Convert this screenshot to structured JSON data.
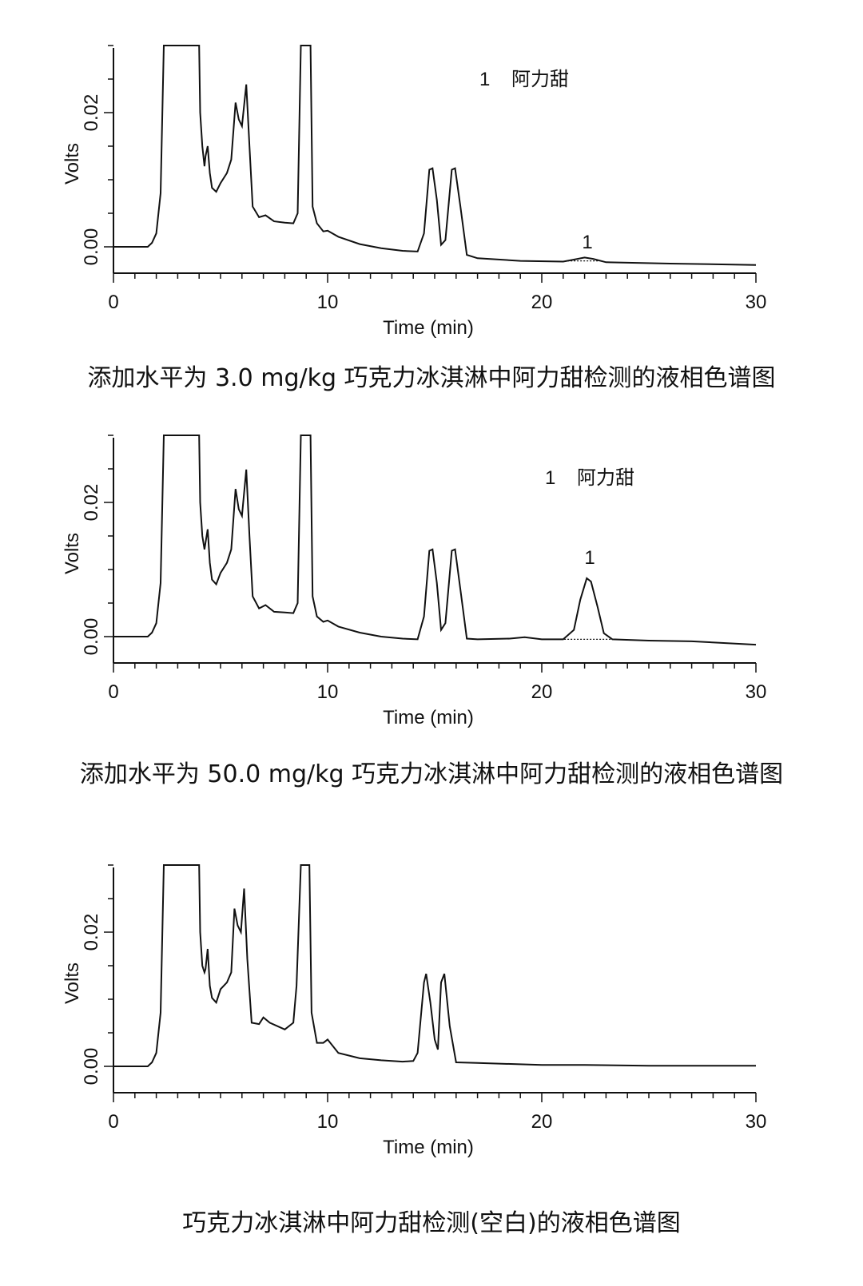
{
  "chart_data": [
    {
      "type": "line",
      "title": "添加水平为 3.0 mg/kg 巧克力冰淇淋中阿力甜检测的液相色谱图",
      "xlabel": "Time (min)",
      "ylabel": "Volts",
      "xlim": [
        0,
        30
      ],
      "ylim": [
        -0.004,
        0.03
      ],
      "xticks": [
        "0",
        "10",
        "20",
        "30"
      ],
      "yticks": [
        "0.00",
        "0.02"
      ],
      "legend": {
        "number": "1",
        "name": "阿力甜"
      },
      "peak_label": "1",
      "points": [
        [
          0,
          0
        ],
        [
          1.2,
          0
        ],
        [
          1.6,
          0
        ],
        [
          1.8,
          0.0006
        ],
        [
          2.0,
          0.002
        ],
        [
          2.2,
          0.008
        ],
        [
          2.35,
          0.03
        ],
        [
          4.0,
          0.03
        ],
        [
          4.05,
          0.02
        ],
        [
          4.15,
          0.015
        ],
        [
          4.25,
          0.012
        ],
        [
          4.3,
          0.0135
        ],
        [
          4.4,
          0.015
        ],
        [
          4.5,
          0.011
        ],
        [
          4.6,
          0.0088
        ],
        [
          4.8,
          0.0082
        ],
        [
          5.0,
          0.0095
        ],
        [
          5.3,
          0.011
        ],
        [
          5.5,
          0.013
        ],
        [
          5.7,
          0.0215
        ],
        [
          5.85,
          0.019
        ],
        [
          6.0,
          0.018
        ],
        [
          6.2,
          0.0242
        ],
        [
          6.35,
          0.015
        ],
        [
          6.5,
          0.006
        ],
        [
          6.8,
          0.0044
        ],
        [
          7.1,
          0.0047
        ],
        [
          7.5,
          0.0038
        ],
        [
          8.0,
          0.0036
        ],
        [
          8.4,
          0.0035
        ],
        [
          8.6,
          0.005
        ],
        [
          8.75,
          0.03
        ],
        [
          9.2,
          0.03
        ],
        [
          9.3,
          0.006
        ],
        [
          9.5,
          0.0035
        ],
        [
          9.8,
          0.0023
        ],
        [
          10.0,
          0.0024
        ],
        [
          10.5,
          0.0015
        ],
        [
          11.5,
          0.0004
        ],
        [
          12.5,
          -0.0002
        ],
        [
          13.5,
          -0.0006
        ],
        [
          14.2,
          -0.0007
        ],
        [
          14.5,
          0.002
        ],
        [
          14.75,
          0.0115
        ],
        [
          14.9,
          0.0117
        ],
        [
          15.1,
          0.007
        ],
        [
          15.3,
          0.0003
        ],
        [
          15.5,
          0.001
        ],
        [
          15.8,
          0.0115
        ],
        [
          15.95,
          0.0117
        ],
        [
          16.2,
          0.006
        ],
        [
          16.5,
          -0.0012
        ],
        [
          17.0,
          -0.0017
        ],
        [
          19.0,
          -0.0021
        ],
        [
          21.0,
          -0.0022
        ],
        [
          21.5,
          -0.0019
        ],
        [
          22.0,
          -0.0016
        ],
        [
          22.4,
          -0.0018
        ],
        [
          23.0,
          -0.0023
        ],
        [
          26.0,
          -0.0025
        ],
        [
          30.0,
          -0.0027
        ]
      ]
    },
    {
      "type": "line",
      "title": "添加水平为 50.0 mg/kg 巧克力冰淇淋中阿力甜检测的液相色谱图",
      "xlabel": "Time (min)",
      "ylabel": "Volts",
      "xlim": [
        0,
        30
      ],
      "ylim": [
        -0.004,
        0.03
      ],
      "xticks": [
        "0",
        "10",
        "20",
        "30"
      ],
      "yticks": [
        "0.00",
        "0.02"
      ],
      "legend": {
        "number": "1",
        "name": "阿力甜"
      },
      "peak_label": "1",
      "points": [
        [
          0,
          0
        ],
        [
          1.2,
          0
        ],
        [
          1.6,
          0
        ],
        [
          1.8,
          0.0006
        ],
        [
          2.0,
          0.002
        ],
        [
          2.2,
          0.008
        ],
        [
          2.35,
          0.03
        ],
        [
          4.0,
          0.03
        ],
        [
          4.05,
          0.02
        ],
        [
          4.15,
          0.015
        ],
        [
          4.25,
          0.013
        ],
        [
          4.3,
          0.014
        ],
        [
          4.4,
          0.016
        ],
        [
          4.5,
          0.011
        ],
        [
          4.6,
          0.0085
        ],
        [
          4.8,
          0.0078
        ],
        [
          5.0,
          0.0095
        ],
        [
          5.3,
          0.011
        ],
        [
          5.5,
          0.013
        ],
        [
          5.7,
          0.022
        ],
        [
          5.85,
          0.019
        ],
        [
          6.0,
          0.018
        ],
        [
          6.2,
          0.0249
        ],
        [
          6.35,
          0.015
        ],
        [
          6.5,
          0.006
        ],
        [
          6.8,
          0.0042
        ],
        [
          7.1,
          0.0047
        ],
        [
          7.5,
          0.0037
        ],
        [
          8.0,
          0.0036
        ],
        [
          8.4,
          0.0035
        ],
        [
          8.6,
          0.005
        ],
        [
          8.75,
          0.03
        ],
        [
          9.2,
          0.03
        ],
        [
          9.3,
          0.006
        ],
        [
          9.5,
          0.003
        ],
        [
          9.8,
          0.0022
        ],
        [
          10.0,
          0.0024
        ],
        [
          10.5,
          0.0015
        ],
        [
          11.5,
          0.0006
        ],
        [
          12.5,
          0
        ],
        [
          13.5,
          -0.0003
        ],
        [
          14.2,
          -0.0004
        ],
        [
          14.5,
          0.003
        ],
        [
          14.75,
          0.0128
        ],
        [
          14.9,
          0.013
        ],
        [
          15.1,
          0.008
        ],
        [
          15.3,
          0.001
        ],
        [
          15.5,
          0.002
        ],
        [
          15.8,
          0.0128
        ],
        [
          15.95,
          0.013
        ],
        [
          16.2,
          0.007
        ],
        [
          16.5,
          -0.0003
        ],
        [
          17.0,
          -0.0004
        ],
        [
          18.5,
          -0.0003
        ],
        [
          19.2,
          -0.0001
        ],
        [
          20.0,
          -0.0004
        ],
        [
          21.0,
          -0.0004
        ],
        [
          21.5,
          0.001
        ],
        [
          21.8,
          0.0055
        ],
        [
          22.1,
          0.0087
        ],
        [
          22.3,
          0.0082
        ],
        [
          22.6,
          0.0045
        ],
        [
          22.9,
          0.0005
        ],
        [
          23.3,
          -0.0004
        ],
        [
          25.0,
          -0.0006
        ],
        [
          27.0,
          -0.0007
        ],
        [
          30.0,
          -0.0012
        ]
      ]
    },
    {
      "type": "line",
      "title": "巧克力冰淇淋中阿力甜检测(空白)的液相色谱图",
      "xlabel": "Time (min)",
      "ylabel": "Volts",
      "xlim": [
        0,
        30
      ],
      "ylim": [
        -0.004,
        0.03
      ],
      "xticks": [
        "0",
        "10",
        "20",
        "30"
      ],
      "yticks": [
        "0.00",
        "0.02"
      ],
      "points": [
        [
          0,
          0
        ],
        [
          1.2,
          0
        ],
        [
          1.6,
          0
        ],
        [
          1.8,
          0.0006
        ],
        [
          2.0,
          0.002
        ],
        [
          2.2,
          0.008
        ],
        [
          2.35,
          0.03
        ],
        [
          4.0,
          0.03
        ],
        [
          4.05,
          0.02
        ],
        [
          4.15,
          0.015
        ],
        [
          4.25,
          0.014
        ],
        [
          4.3,
          0.0145
        ],
        [
          4.4,
          0.0175
        ],
        [
          4.5,
          0.012
        ],
        [
          4.6,
          0.0102
        ],
        [
          4.8,
          0.0095
        ],
        [
          5.0,
          0.0115
        ],
        [
          5.3,
          0.0125
        ],
        [
          5.5,
          0.014
        ],
        [
          5.65,
          0.0235
        ],
        [
          5.8,
          0.021
        ],
        [
          5.95,
          0.02
        ],
        [
          6.1,
          0.0265
        ],
        [
          6.25,
          0.016
        ],
        [
          6.45,
          0.0065
        ],
        [
          6.8,
          0.0063
        ],
        [
          7.0,
          0.0073
        ],
        [
          7.3,
          0.0065
        ],
        [
          8.0,
          0.0055
        ],
        [
          8.4,
          0.0065
        ],
        [
          8.55,
          0.012
        ],
        [
          8.75,
          0.03
        ],
        [
          9.15,
          0.03
        ],
        [
          9.25,
          0.008
        ],
        [
          9.5,
          0.0035
        ],
        [
          9.8,
          0.0035
        ],
        [
          10.0,
          0.004
        ],
        [
          10.5,
          0.002
        ],
        [
          11.5,
          0.0012
        ],
        [
          12.5,
          0.0009
        ],
        [
          13.5,
          0.0007
        ],
        [
          14.0,
          0.0008
        ],
        [
          14.2,
          0.002
        ],
        [
          14.5,
          0.0125
        ],
        [
          14.6,
          0.0138
        ],
        [
          14.8,
          0.0095
        ],
        [
          15.0,
          0.004
        ],
        [
          15.15,
          0.0025
        ],
        [
          15.3,
          0.0125
        ],
        [
          15.45,
          0.0138
        ],
        [
          15.7,
          0.006
        ],
        [
          16.0,
          0.0006
        ],
        [
          17.0,
          0.0005
        ],
        [
          18.0,
          0.0004
        ],
        [
          20.0,
          0.0002
        ],
        [
          22.0,
          0.0002
        ],
        [
          25.0,
          0.0001
        ],
        [
          30.0,
          0.0001
        ]
      ]
    }
  ]
}
